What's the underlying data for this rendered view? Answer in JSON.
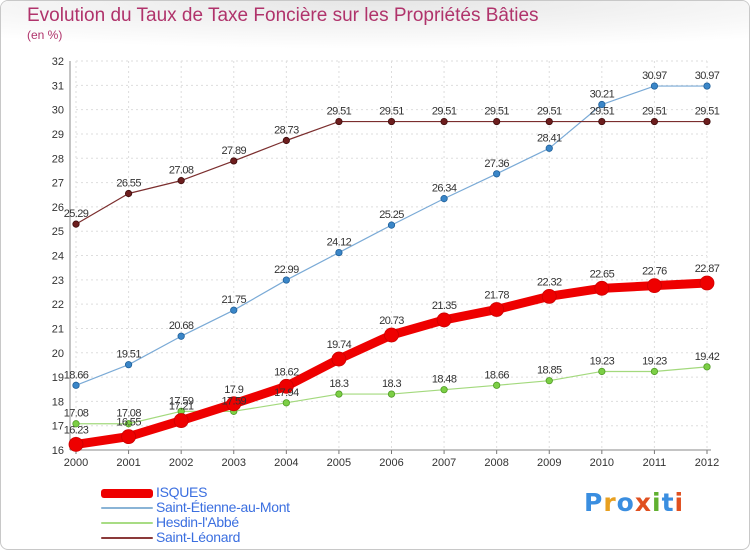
{
  "header": {
    "title": "Evolution du Taux de Taxe Foncière sur les Propriétés Bâties",
    "unit": "(en %)"
  },
  "chart_data": {
    "type": "line",
    "title": "Evolution du Taux de Taxe Foncière sur les Propriétés Bâties",
    "ylabel": "(en %)",
    "xlabel": "",
    "categories": [
      "2000",
      "2001",
      "2002",
      "2003",
      "2004",
      "2005",
      "2006",
      "2007",
      "2008",
      "2009",
      "2010",
      "2011",
      "2012"
    ],
    "ylim": [
      16,
      32
    ],
    "yticks": [
      16,
      17,
      18,
      19,
      20,
      21,
      22,
      23,
      24,
      25,
      26,
      27,
      28,
      29,
      30,
      31,
      32
    ],
    "grid": true,
    "legend_position": "bottom-left",
    "series": [
      {
        "name": "ISQUES",
        "color": "#ee0000",
        "values": [
          16.23,
          16.55,
          17.21,
          17.9,
          18.62,
          19.74,
          20.73,
          21.35,
          21.78,
          22.32,
          22.65,
          22.76,
          22.87
        ],
        "labels": [
          "16.23",
          "16.55",
          "17.21",
          "17.9",
          "18.62",
          "19.74",
          "20.73",
          "21.35",
          "21.78",
          "22.32",
          "22.65",
          "22.76",
          "22.87"
        ]
      },
      {
        "name": "Saint-Étienne-au-Mont",
        "color": "#3a86c8",
        "values": [
          18.66,
          19.51,
          20.68,
          21.75,
          22.99,
          24.12,
          25.25,
          26.34,
          27.36,
          28.41,
          30.21,
          30.97,
          30.97
        ],
        "labels": [
          "18.66",
          "19.51",
          "20.68",
          "21.75",
          "22.99",
          "24.12",
          "25.25",
          "26.34",
          "27.36",
          "28.41",
          "30.21",
          "30.97",
          "30.97"
        ]
      },
      {
        "name": "Hesdin-l'Abbé",
        "color": "#7ccf45",
        "values": [
          17.08,
          17.08,
          17.59,
          17.59,
          17.94,
          18.3,
          18.3,
          18.48,
          18.66,
          18.85,
          19.23,
          19.23,
          19.42
        ],
        "labels": [
          "17.08",
          "17.08",
          "17.59",
          "17.59",
          "17.94",
          "18.3",
          "18.3",
          "18.48",
          "18.66",
          "18.85",
          "19.23",
          "19.23",
          "19.42"
        ]
      },
      {
        "name": "Saint-Léonard",
        "color": "#6d1e1e",
        "values": [
          25.29,
          26.55,
          27.08,
          27.89,
          28.73,
          29.51,
          29.51,
          29.51,
          29.51,
          29.51,
          29.51,
          29.51,
          29.51
        ],
        "labels": [
          "25.29",
          "26.55",
          "27.08",
          "27.89",
          "28.73",
          "29.51",
          "29.51",
          "29.51",
          "29.51",
          "29.51",
          "29.51",
          "29.51",
          "29.51"
        ]
      }
    ]
  },
  "legend": {
    "items": [
      {
        "label": "ISQUES",
        "color": "#ee0000"
      },
      {
        "label": "Saint-Étienne-au-Mont",
        "color": "#8ab4d6"
      },
      {
        "label": "Hesdin-l'Abbé",
        "color": "#a8dc84"
      },
      {
        "label": "Saint-Léonard",
        "color": "#8b3a3a"
      }
    ]
  },
  "logo": {
    "text": "Proxiti",
    "colors": [
      "#3a8ee0",
      "#e8a020",
      "#3a8ee0",
      "#e05020",
      "#60b030",
      "#3a8ee0",
      "#e05020"
    ]
  }
}
